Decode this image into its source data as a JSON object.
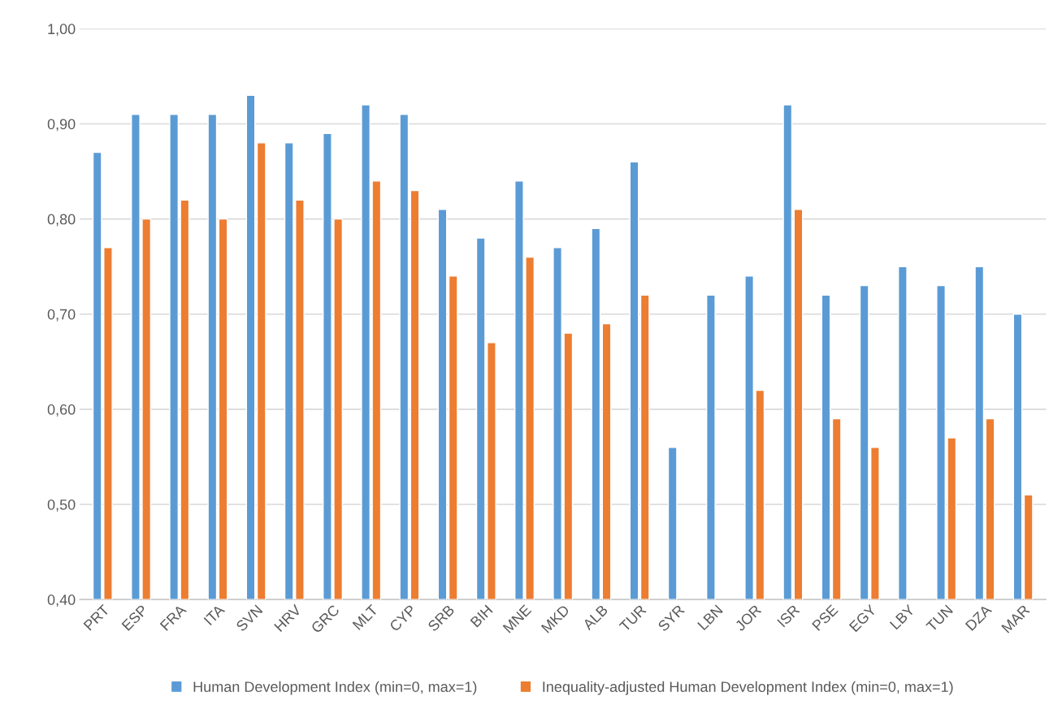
{
  "chart_data": {
    "type": "bar",
    "categories": [
      "PRT",
      "ESP",
      "FRA",
      "ITA",
      "SVN",
      "HRV",
      "GRC",
      "MLT",
      "CYP",
      "SRB",
      "BIH",
      "MNE",
      "MKD",
      "ALB",
      "TUR",
      "SYR",
      "LBN",
      "JOR",
      "ISR",
      "PSE",
      "EGY",
      "LBY",
      "TUN",
      "DZA",
      "MAR"
    ],
    "series": [
      {
        "name": "Human Development Index (min=0, max=1)",
        "color": "#5b9bd5",
        "values": [
          0.87,
          0.91,
          0.91,
          0.91,
          0.93,
          0.88,
          0.89,
          0.92,
          0.91,
          0.81,
          0.78,
          0.84,
          0.77,
          0.79,
          0.86,
          0.56,
          0.72,
          0.74,
          0.92,
          0.72,
          0.73,
          0.75,
          0.73,
          0.75,
          0.7
        ]
      },
      {
        "name": "Inequality-adjusted Human Development Index (min=0, max=1)",
        "color": "#ed7d31",
        "values": [
          0.77,
          0.8,
          0.82,
          0.8,
          0.88,
          0.82,
          0.8,
          0.84,
          0.83,
          0.74,
          0.67,
          0.76,
          0.68,
          0.69,
          0.72,
          null,
          null,
          0.62,
          0.81,
          0.59,
          0.56,
          null,
          0.57,
          0.59,
          0.51
        ]
      }
    ],
    "ylim": [
      0.4,
      1.0
    ],
    "yticks": [
      {
        "value": 0.4,
        "label": "0,40"
      },
      {
        "value": 0.5,
        "label": "0,50"
      },
      {
        "value": 0.6,
        "label": "0,60"
      },
      {
        "value": 0.7,
        "label": "0,70"
      },
      {
        "value": 0.8,
        "label": "0,80"
      },
      {
        "value": 0.9,
        "label": "0,90"
      },
      {
        "value": 1.0,
        "label": "1,00"
      }
    ],
    "grid": "y",
    "legend": "bottom"
  }
}
